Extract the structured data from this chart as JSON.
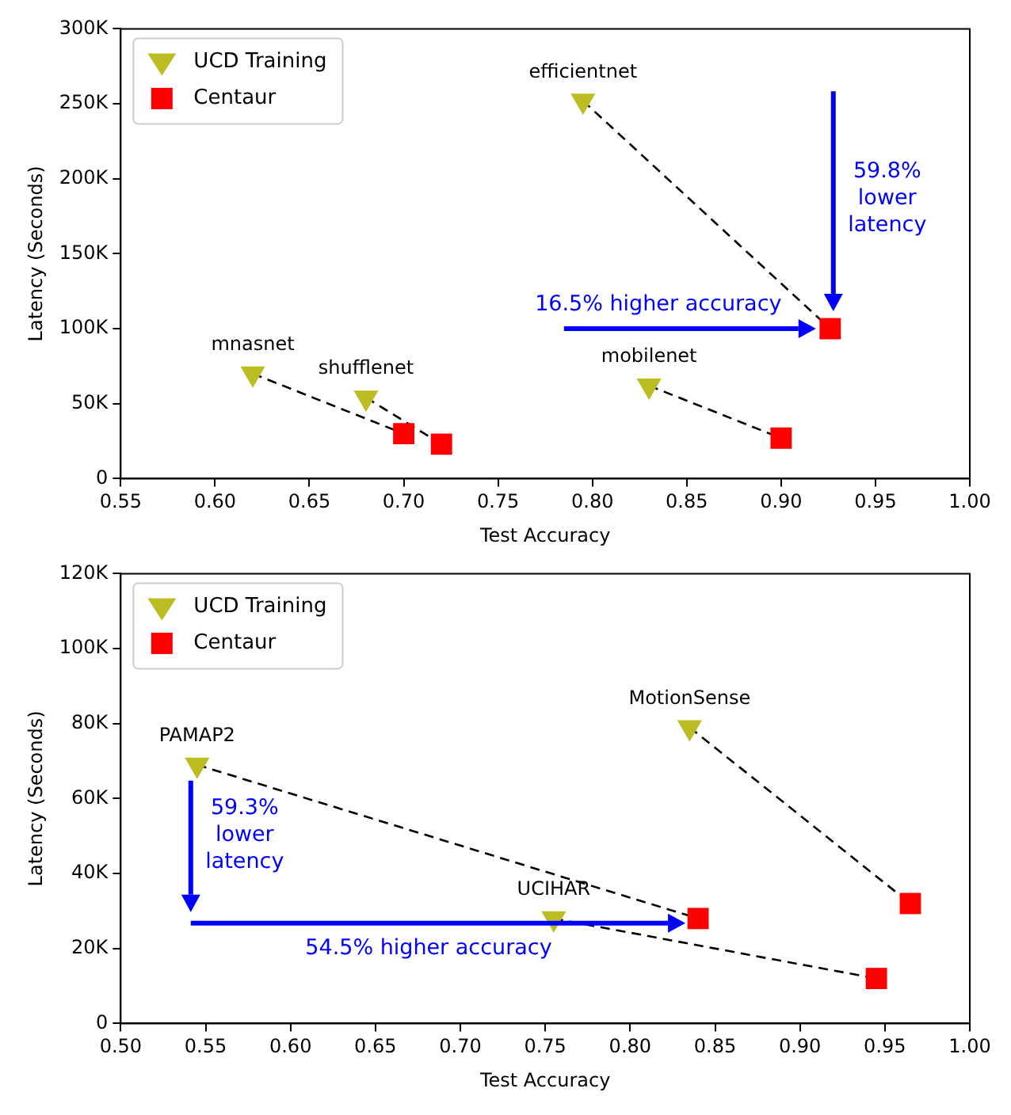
{
  "chart_data": [
    {
      "type": "scatter",
      "xlabel": "Test Accuracy",
      "ylabel": "Latency (Seconds)",
      "legend": "top left",
      "xlim": [
        0.55,
        1.0
      ],
      "xticks": [
        0.55,
        {
          "value": 0.6,
          "label": "0.60"
        },
        0.65,
        {
          "value": 0.7,
          "label": "0.70"
        },
        0.75,
        {
          "value": 0.8,
          "label": "0.80"
        },
        0.85,
        {
          "value": 0.9,
          "label": "0.90"
        },
        0.95,
        {
          "value": 1.0,
          "label": "1.00"
        }
      ],
      "ylim": [
        0,
        300000
      ],
      "yticks": [
        0,
        {
          "value": 50000,
          "label": "50K"
        },
        {
          "value": 100000,
          "label": "100K"
        },
        {
          "value": 150000,
          "label": "150K"
        },
        {
          "value": 200000,
          "label": "200K"
        },
        {
          "value": 250000,
          "label": "250K"
        },
        {
          "value": 300000,
          "label": "300K"
        }
      ],
      "series": [
        {
          "name": "UCD Training",
          "color": "#bcbd22",
          "marker": "triangle",
          "x": [
            0.795,
            0.62,
            0.68,
            0.83
          ],
          "values": [
            252000,
            70000,
            54000,
            62000
          ]
        },
        {
          "name": "Centaur",
          "color": "#ff0000",
          "marker": "square",
          "x": [
            0.926,
            0.7,
            0.72,
            0.9
          ],
          "values": [
            100000,
            30000,
            23000,
            27000
          ]
        },
        {
          "type": "line",
          "color": "#000000",
          "line_style": "dashed",
          "marker": "none",
          "x": [
            0.795,
            0.926
          ],
          "values": [
            252000,
            100000
          ]
        },
        {
          "type": "line",
          "color": "#000000",
          "line_style": "dashed",
          "marker": "none",
          "x": [
            0.62,
            0.7
          ],
          "values": [
            70000,
            30000
          ]
        },
        {
          "type": "line",
          "color": "#000000",
          "line_style": "dashed",
          "marker": "none",
          "x": [
            0.68,
            0.72
          ],
          "values": [
            54000,
            23000
          ]
        },
        {
          "type": "line",
          "color": "#000000",
          "line_style": "dashed",
          "marker": "none",
          "x": [
            0.83,
            0.9
          ],
          "values": [
            62000,
            27000
          ]
        }
      ],
      "annotations": [
        {
          "text": "efficientnet",
          "x": 0.795,
          "y": 252000
        },
        {
          "text": "mnasnet",
          "x": 0.62,
          "y": 70000
        },
        {
          "text": "shufflenet",
          "x": 0.68,
          "y": 54000
        },
        {
          "text": "mobilenet",
          "x": 0.83,
          "y": 62000
        },
        {
          "text": "16.5% higher accuracy",
          "x": 0.926,
          "y": 100000
        },
        "59.8%\nlower\nlatency"
      ]
    },
    {
      "type": "scatter",
      "xlabel": "Test Accuracy",
      "ylabel": "Latency (Seconds)",
      "legend": "top left",
      "xlim": [
        0.5,
        1.0
      ],
      "xticks": [
        {
          "value": 0.5,
          "label": "0.50"
        },
        0.55,
        {
          "value": 0.6,
          "label": "0.60"
        },
        0.65,
        {
          "value": 0.7,
          "label": "0.70"
        },
        0.75,
        {
          "value": 0.8,
          "label": "0.80"
        },
        0.85,
        {
          "value": 0.9,
          "label": "0.90"
        },
        0.95,
        {
          "value": 1.0,
          "label": "1.00"
        }
      ],
      "ylim": [
        0,
        120000
      ],
      "yticks": [
        0,
        {
          "value": 20000,
          "label": "20K"
        },
        {
          "value": 40000,
          "label": "40K"
        },
        {
          "value": 60000,
          "label": "60K"
        },
        {
          "value": 80000,
          "label": "80K"
        },
        {
          "value": 100000,
          "label": "100K"
        },
        {
          "value": 120000,
          "label": "120K"
        }
      ],
      "series": [
        {
          "name": "UCD Training",
          "color": "#bcbd22",
          "marker": "triangle",
          "x": [
            0.545,
            0.755,
            0.835
          ],
          "values": [
            69000,
            28000,
            79000
          ]
        },
        {
          "name": "Centaur",
          "color": "#ff0000",
          "marker": "square",
          "x": [
            0.84,
            0.945,
            0.965
          ],
          "values": [
            28000,
            12000,
            32000
          ]
        },
        {
          "type": "line",
          "color": "#000000",
          "line_style": "dashed",
          "marker": "none",
          "x": [
            0.545,
            0.84
          ],
          "values": [
            69000,
            28000
          ]
        },
        {
          "type": "line",
          "color": "#000000",
          "line_style": "dashed",
          "marker": "none",
          "x": [
            0.755,
            0.945
          ],
          "values": [
            28000,
            12000
          ]
        },
        {
          "type": "line",
          "color": "#000000",
          "line_style": "dashed",
          "marker": "none",
          "x": [
            0.835,
            0.965
          ],
          "values": [
            79000,
            32000
          ]
        }
      ],
      "annotations": [
        {
          "text": "PAMAP2",
          "x": 0.545,
          "y": 69000
        },
        {
          "text": "UCIHAR",
          "x": 0.755,
          "y": 28000
        },
        {
          "text": "MotionSense",
          "x": 0.835,
          "y": 79000
        },
        "54.5% higher accuracy",
        "59.3%\nlower\nlatency"
      ]
    }
  ]
}
